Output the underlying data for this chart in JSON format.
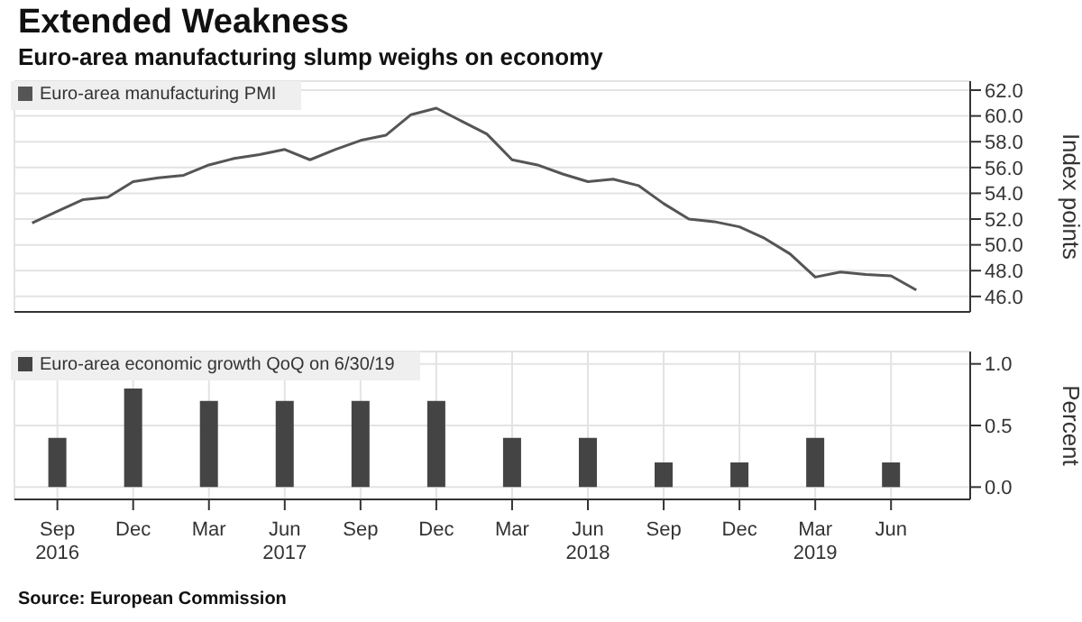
{
  "chart_data": [
    {
      "type": "line",
      "title": "Extended Weakness",
      "subtitle": "Euro-area manufacturing slump weighs on economy",
      "ylabel": "Index points",
      "legend": "top left",
      "grid": true,
      "tick_labels": "y",
      "x": [
        "2016-08",
        "2016-09",
        "2016-10",
        "2016-11",
        "2016-12",
        "2017-01",
        "2017-02",
        "2017-03",
        "2017-04",
        "2017-05",
        "2017-06",
        "2017-07",
        "2017-08",
        "2017-09",
        "2017-10",
        "2017-11",
        "2017-12",
        "2018-01",
        "2018-02",
        "2018-03",
        "2018-04",
        "2018-05",
        "2018-06",
        "2018-07",
        "2018-08",
        "2018-09",
        "2018-10",
        "2018-11",
        "2018-12",
        "2019-01",
        "2019-02",
        "2019-03",
        "2019-04",
        "2019-05",
        "2019-06",
        "2019-07"
      ],
      "series": [
        {
          "name": "Euro-area manufacturing PMI",
          "color": "#555555",
          "values": [
            51.7,
            52.6,
            53.5,
            53.7,
            54.9,
            55.2,
            55.4,
            56.2,
            56.7,
            57.0,
            57.4,
            56.6,
            57.4,
            58.1,
            58.5,
            60.1,
            60.6,
            59.6,
            58.6,
            56.6,
            56.2,
            55.5,
            54.9,
            55.1,
            54.6,
            53.2,
            52.0,
            51.8,
            51.4,
            50.5,
            49.3,
            47.5,
            47.9,
            47.7,
            47.6,
            46.5
          ]
        }
      ],
      "xlim": [
        "2016-07-10",
        "2019-09-05"
      ],
      "xticks": [
        {
          "value": "2016-09",
          "label": null
        },
        {
          "value": "2016-12",
          "label": null
        },
        {
          "value": "2017-03",
          "label": null
        },
        {
          "value": "2017-06",
          "label": null
        },
        {
          "value": "2017-09",
          "label": null
        },
        {
          "value": "2017-12",
          "label": null
        },
        {
          "value": "2018-03",
          "label": null
        },
        {
          "value": "2018-06",
          "label": null
        },
        {
          "value": "2018-09",
          "label": null
        },
        {
          "value": "2018-12",
          "label": null
        },
        {
          "value": "2019-03",
          "label": null
        },
        {
          "value": "2019-06",
          "label": null
        }
      ],
      "ylim": [
        44.8,
        62.7
      ],
      "yticks": [
        {
          "value": 46,
          "label": "46.0"
        },
        {
          "value": 48,
          "label": "48.0"
        },
        {
          "value": 50,
          "label": "50.0"
        },
        {
          "value": 52,
          "label": "52.0"
        },
        {
          "value": 54,
          "label": "54.0"
        },
        {
          "value": 56,
          "label": "56.0"
        },
        {
          "value": 58,
          "label": "58.0"
        },
        {
          "value": 60,
          "label": "60.0"
        },
        {
          "value": 62,
          "label": "62.0"
        }
      ]
    },
    {
      "type": "bar",
      "ylabel": "Percent",
      "legend": "top left",
      "grid": true,
      "x": [
        "2016-09",
        "2016-12",
        "2017-03",
        "2017-06",
        "2017-09",
        "2017-12",
        "2018-03",
        "2018-06",
        "2018-09",
        "2018-12",
        "2019-03",
        "2019-06"
      ],
      "series": [
        {
          "name": "Euro-area economic growth QoQ on 6/30/19",
          "color": "#444444",
          "values": [
            0.4,
            0.8,
            0.7,
            0.7,
            0.7,
            0.7,
            0.4,
            0.4,
            0.2,
            0.2,
            0.4,
            0.2
          ]
        }
      ],
      "xlim": [
        "2016-07-10",
        "2019-09-05"
      ],
      "xticks": [
        {
          "value": "2016-09",
          "label": "Sep\n2016"
        },
        {
          "value": "2016-12",
          "label": "Dec"
        },
        {
          "value": "2017-03",
          "label": "Mar"
        },
        {
          "value": "2017-06",
          "label": "Jun\n2017"
        },
        {
          "value": "2017-09",
          "label": "Sep"
        },
        {
          "value": "2017-12",
          "label": "Dec"
        },
        {
          "value": "2018-03",
          "label": "Mar"
        },
        {
          "value": "2018-06",
          "label": "Jun\n2018"
        },
        {
          "value": "2018-09",
          "label": "Sep"
        },
        {
          "value": "2018-12",
          "label": "Dec"
        },
        {
          "value": "2019-03",
          "label": "Mar\n2019"
        },
        {
          "value": "2019-06",
          "label": "Jun"
        }
      ],
      "ylim": [
        -0.1,
        1.1
      ],
      "yticks": [
        {
          "value": 0,
          "label": "0.0"
        },
        {
          "value": 0.5,
          "label": "0.5"
        },
        {
          "value": 1,
          "label": "1.0"
        }
      ],
      "annotations": [
        "Source: European Commission"
      ]
    }
  ]
}
